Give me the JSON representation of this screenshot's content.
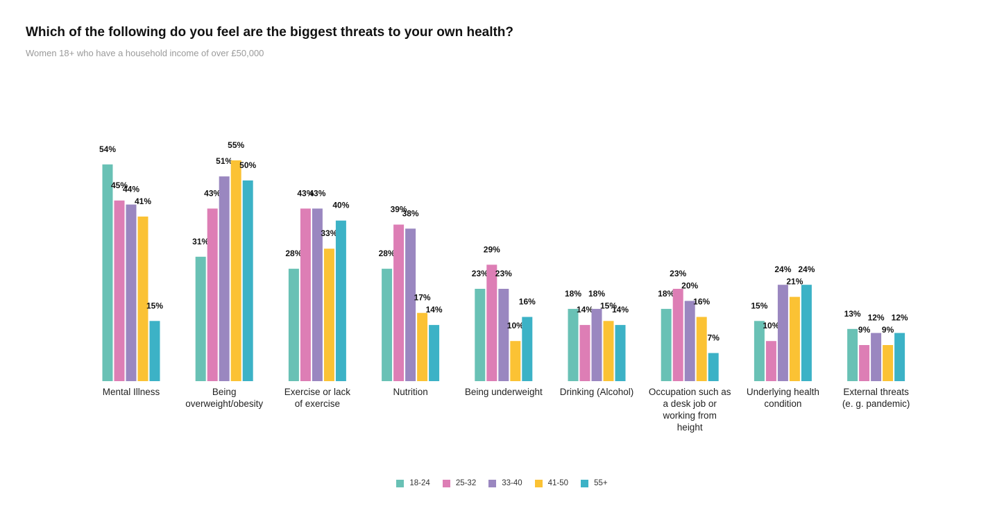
{
  "chart_data": {
    "type": "bar",
    "title": "Which of the following do you feel are the biggest threats to your own health?",
    "subtitle": "Women 18+ who have a household income of over £50,000",
    "xlabel": "",
    "ylabel": "",
    "ylim": [
      0,
      55
    ],
    "grid": false,
    "legend_position": "bottom-center",
    "value_suffix": "%",
    "categories": [
      "Mental Illness",
      "Being overweight/obesity",
      "Exercise or lack of exercise",
      "Nutrition",
      "Being underweight",
      "Drinking (Alcohol)",
      "Occupation such as a desk job or working from height",
      "Underlying health condition",
      "External threats (e. g. pandemic)"
    ],
    "series": [
      {
        "name": "18-24",
        "color": "#69c1b5",
        "values": [
          54,
          31,
          28,
          28,
          23,
          18,
          18,
          15,
          13
        ]
      },
      {
        "name": "25-32",
        "color": "#dd7eb5",
        "values": [
          45,
          43,
          43,
          39,
          29,
          14,
          23,
          10,
          9
        ]
      },
      {
        "name": "33-40",
        "color": "#9a87c0",
        "values": [
          44,
          51,
          43,
          38,
          23,
          18,
          20,
          24,
          12
        ]
      },
      {
        "name": "41-50",
        "color": "#fbc234",
        "values": [
          41,
          55,
          33,
          17,
          10,
          15,
          16,
          21,
          9
        ]
      },
      {
        "name": "55+",
        "color": "#3cb2c6",
        "values": [
          15,
          50,
          40,
          14,
          16,
          14,
          7,
          24,
          12
        ]
      }
    ]
  }
}
